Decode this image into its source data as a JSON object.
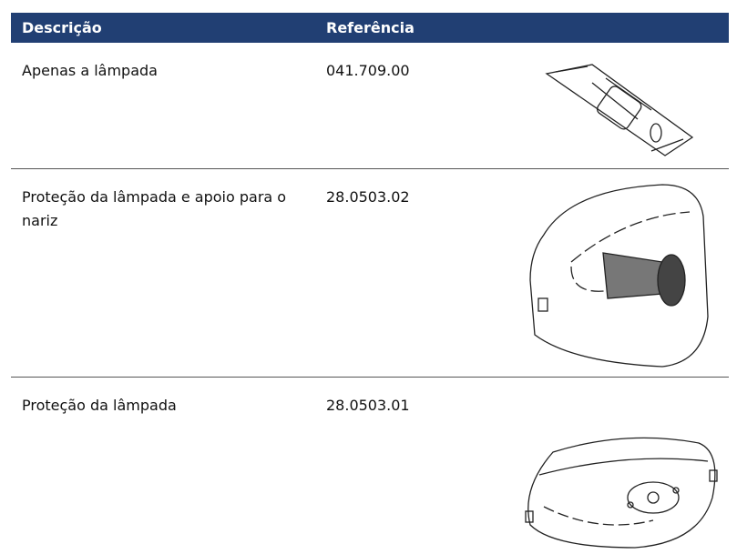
{
  "table": {
    "header": [
      "Descrição",
      "Referência"
    ],
    "rows": [
      [
        "Apenas a lâmpada",
        "041.709.00"
      ],
      [
        "Proteção da lâmpada e apoio para o nariz",
        "28.0503.02"
      ],
      [
        "Proteção da lâmpada",
        "28.0503.01"
      ]
    ]
  }
}
